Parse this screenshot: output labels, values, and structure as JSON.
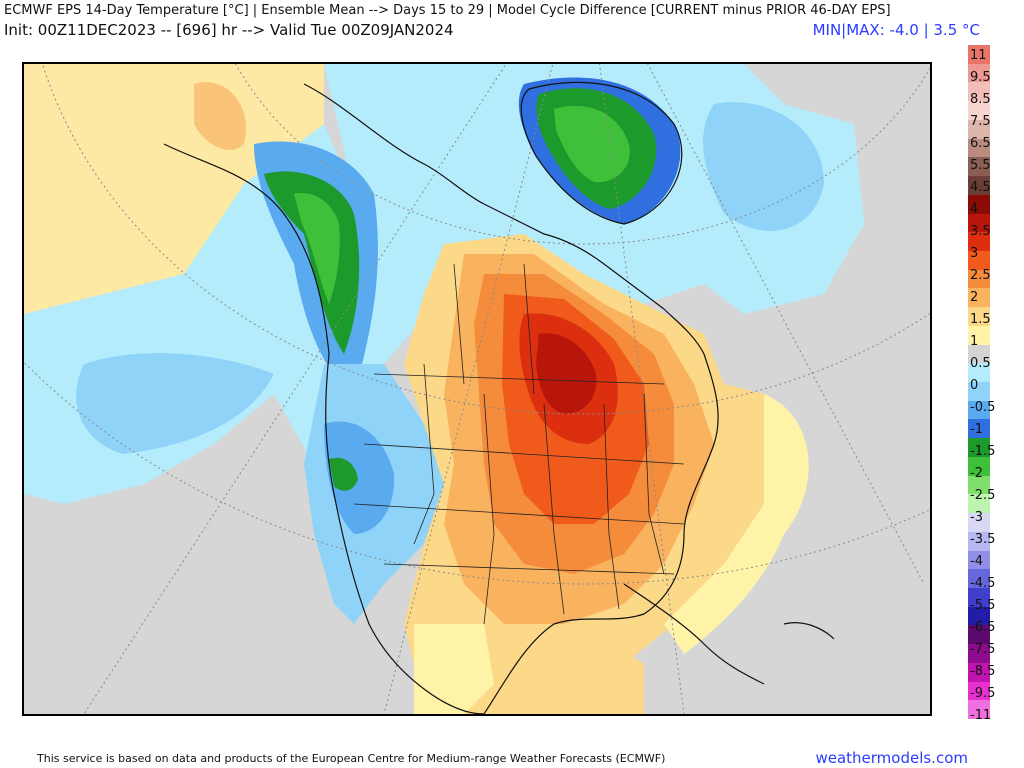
{
  "header": {
    "title_line1": "ECMWF EPS 14-Day Temperature [°C] | Ensemble Mean --> Days 15 to 29 | Model Cycle Difference [CURRENT minus PRIOR 46-DAY EPS]",
    "title_line2": "Init: 00Z11DEC2023 -- [696] hr --> Valid Tue 00Z09JAN2024",
    "minmax": "MIN|MAX: -4.0 | 3.5 °C"
  },
  "legend": {
    "labels": [
      "11",
      "9.5",
      "8.5",
      "7.5",
      "6.5",
      "5.5",
      "4.5",
      "4",
      "3.5",
      "3",
      "2.5",
      "2",
      "1.5",
      "1",
      "0.5",
      "0",
      "-0.5",
      "-1",
      "-1.5",
      "-2",
      "-2.5",
      "-3",
      "-3.5",
      "-4",
      "-4.5",
      "-5.5",
      "-6.5",
      "-7.5",
      "-8.5",
      "-9.5",
      "-11"
    ],
    "colors": [
      "#e8746a",
      "#ee9a93",
      "#f3bdb8",
      "#f6d5d0",
      "#dcb6ab",
      "#b98c7e",
      "#8a5e52",
      "#6b3f35",
      "#8b0b06",
      "#b8160a",
      "#dc2f10",
      "#f05a1a",
      "#f58c3b",
      "#f9b25e",
      "#fcd889",
      "#fff3a8",
      "#d4d4d4",
      "#b5ecfb",
      "#8fd3f8",
      "#5aaaf0",
      "#2f6fe0",
      "#1c9a2b",
      "#3fbf3a",
      "#7ee06a",
      "#bdf5b0",
      "#d8d8f5",
      "#b6b6f0",
      "#8f8fe8",
      "#6767dd",
      "#3f3fcc",
      "#221ca8",
      "#5c0a6b",
      "#8c0c8c",
      "#c014b0",
      "#e830d0",
      "#f070e0"
    ]
  },
  "footer": {
    "credit": "This service is based on data and products of the European Centre for Medium-range Weather Forecasts (ECMWF)",
    "site": "weathermodels.com"
  }
}
